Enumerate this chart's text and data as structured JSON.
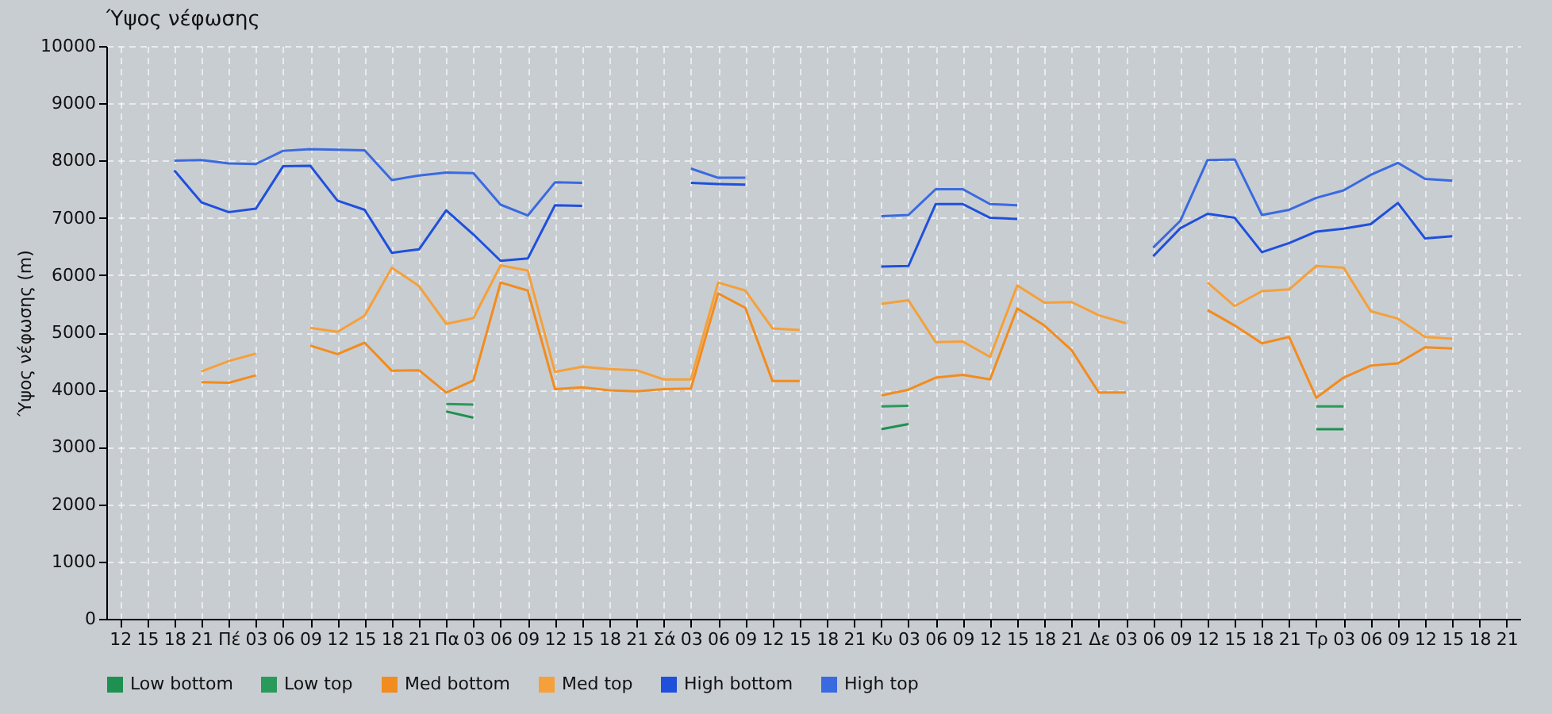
{
  "chart_data": {
    "type": "line",
    "title": "Ύψος νέφωσης",
    "ylabel": "Ύψος νέφωσης (m)",
    "categories": [
      "12",
      "15",
      "18",
      "21",
      "Πέ",
      "03",
      "06",
      "09",
      "12",
      "15",
      "18",
      "21",
      "Πα",
      "03",
      "06",
      "09",
      "12",
      "15",
      "18",
      "21",
      "Σά",
      "03",
      "06",
      "09",
      "12",
      "15",
      "18",
      "21",
      "Κυ",
      "03",
      "06",
      "09",
      "12",
      "15",
      "18",
      "21",
      "Δε",
      "03",
      "06",
      "09",
      "12",
      "15",
      "18",
      "21",
      "Τρ",
      "03",
      "06",
      "09",
      "12",
      "15",
      "18",
      "21"
    ],
    "ylim": [
      0,
      10000
    ],
    "yticks": [
      0,
      1000,
      2000,
      3000,
      4000,
      5000,
      6000,
      7000,
      8000,
      9000,
      10000
    ],
    "grid": true,
    "legend": "bottom",
    "marker": "none",
    "line_style": "solid",
    "series": [
      {
        "name": "Low bottom",
        "color": "#1e9150",
        "values": [
          null,
          null,
          null,
          null,
          null,
          null,
          null,
          null,
          null,
          null,
          null,
          null,
          3620,
          3510,
          null,
          null,
          null,
          null,
          null,
          null,
          null,
          null,
          null,
          null,
          null,
          null,
          null,
          null,
          3310,
          3400,
          null,
          null,
          null,
          null,
          null,
          null,
          null,
          null,
          null,
          null,
          null,
          null,
          null,
          null,
          3310,
          3310,
          null,
          null,
          null,
          null,
          null,
          null
        ]
      },
      {
        "name": "Low top",
        "color": "#2a9a5a",
        "values": [
          null,
          null,
          null,
          null,
          null,
          null,
          null,
          null,
          null,
          null,
          null,
          null,
          3750,
          3740,
          null,
          null,
          null,
          null,
          null,
          null,
          null,
          null,
          null,
          null,
          null,
          null,
          null,
          null,
          3710,
          3720,
          null,
          null,
          null,
          null,
          null,
          null,
          null,
          null,
          null,
          null,
          null,
          null,
          null,
          null,
          3710,
          3710,
          null,
          null,
          null,
          null,
          null,
          null
        ]
      },
      {
        "name": "Med bottom",
        "color": "#f28c1e",
        "values": [
          null,
          null,
          null,
          4130,
          4120,
          4250,
          null,
          4770,
          4620,
          4820,
          4330,
          4340,
          3950,
          4160,
          5870,
          5730,
          4010,
          4040,
          3990,
          3970,
          4010,
          4020,
          5680,
          5430,
          4150,
          4150,
          null,
          null,
          3900,
          4000,
          4210,
          4260,
          4180,
          5420,
          5120,
          4690,
          3950,
          3950,
          null,
          null,
          5390,
          5120,
          4810,
          4920,
          3860,
          4210,
          4420,
          4460,
          4740,
          4720,
          null,
          null
        ]
      },
      {
        "name": "Med top",
        "color": "#f5a03a",
        "values": [
          null,
          null,
          null,
          4320,
          4500,
          4630,
          null,
          5080,
          5010,
          5290,
          6130,
          5810,
          5150,
          5250,
          6170,
          6080,
          4310,
          4400,
          4360,
          4340,
          4180,
          4180,
          5870,
          5730,
          5070,
          5040,
          null,
          null,
          5500,
          5560,
          4830,
          4840,
          4570,
          5820,
          5520,
          5530,
          5300,
          5160,
          null,
          null,
          5870,
          5460,
          5720,
          5750,
          6160,
          6130,
          5370,
          5240,
          4920,
          4890,
          null,
          null
        ]
      },
      {
        "name": "High bottom",
        "color": "#1f50dc",
        "values": [
          null,
          null,
          7830,
          7270,
          7100,
          7160,
          7900,
          7910,
          7300,
          7140,
          6390,
          6450,
          7130,
          6710,
          6250,
          6290,
          7220,
          7210,
          null,
          null,
          null,
          7610,
          7590,
          7580,
          null,
          null,
          null,
          null,
          6150,
          6160,
          7240,
          7240,
          7000,
          6980,
          null,
          null,
          null,
          null,
          6330,
          6820,
          7070,
          7000,
          6400,
          6560,
          6760,
          6810,
          6890,
          7260,
          6640,
          6680,
          null,
          null
        ]
      },
      {
        "name": "High top",
        "color": "#3a6ae0",
        "values": [
          null,
          null,
          8000,
          8010,
          7950,
          7940,
          8170,
          8200,
          8190,
          8180,
          7660,
          7740,
          7790,
          7780,
          7230,
          7040,
          7620,
          7610,
          null,
          null,
          null,
          7860,
          7700,
          7700,
          null,
          null,
          null,
          null,
          7030,
          7050,
          7500,
          7500,
          7240,
          7220,
          null,
          null,
          null,
          null,
          6480,
          6950,
          8010,
          8020,
          7050,
          7140,
          7350,
          7480,
          7750,
          7960,
          7680,
          7650,
          null,
          null
        ]
      }
    ]
  }
}
